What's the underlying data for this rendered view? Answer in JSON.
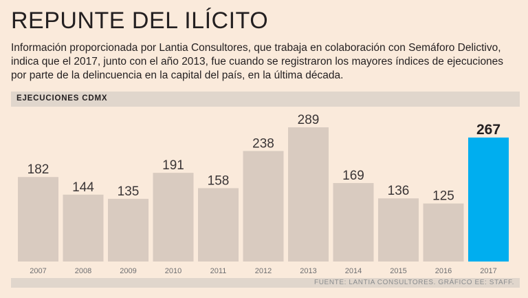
{
  "header": {
    "title": "REPUNTE DEL ILÍCITO",
    "subtitle": "Información proporcionada por Lantia Consultores, que trabaja en colaboración con Semáforo Delictivo, indica que el 2017, junto con el año 2013, fue cuando se registraron los mayores índices de ejecuciones por parte de la delincuencia en la capital del país, en la última década."
  },
  "section": {
    "label": "EJECUCIONES CDMX"
  },
  "footer": {
    "source": "FUENTE: LANTIA CONSULTORES. GRÁFICO EE: STAFF."
  },
  "colors": {
    "bar": "#d9cbc0",
    "highlight": "#00aeef",
    "background": "#faeadb"
  },
  "chart_data": {
    "type": "bar",
    "title": "EJECUCIONES CDMX",
    "categories": [
      "2007",
      "2008",
      "2009",
      "2010",
      "2011",
      "2012",
      "2013",
      "2014",
      "2015",
      "2016",
      "2017"
    ],
    "values": [
      182,
      144,
      135,
      191,
      158,
      238,
      289,
      169,
      136,
      125,
      267
    ],
    "highlight_category": "2017",
    "xlabel": "",
    "ylabel": "",
    "ylim": [
      0,
      289
    ],
    "grid": false,
    "legend": "none"
  }
}
